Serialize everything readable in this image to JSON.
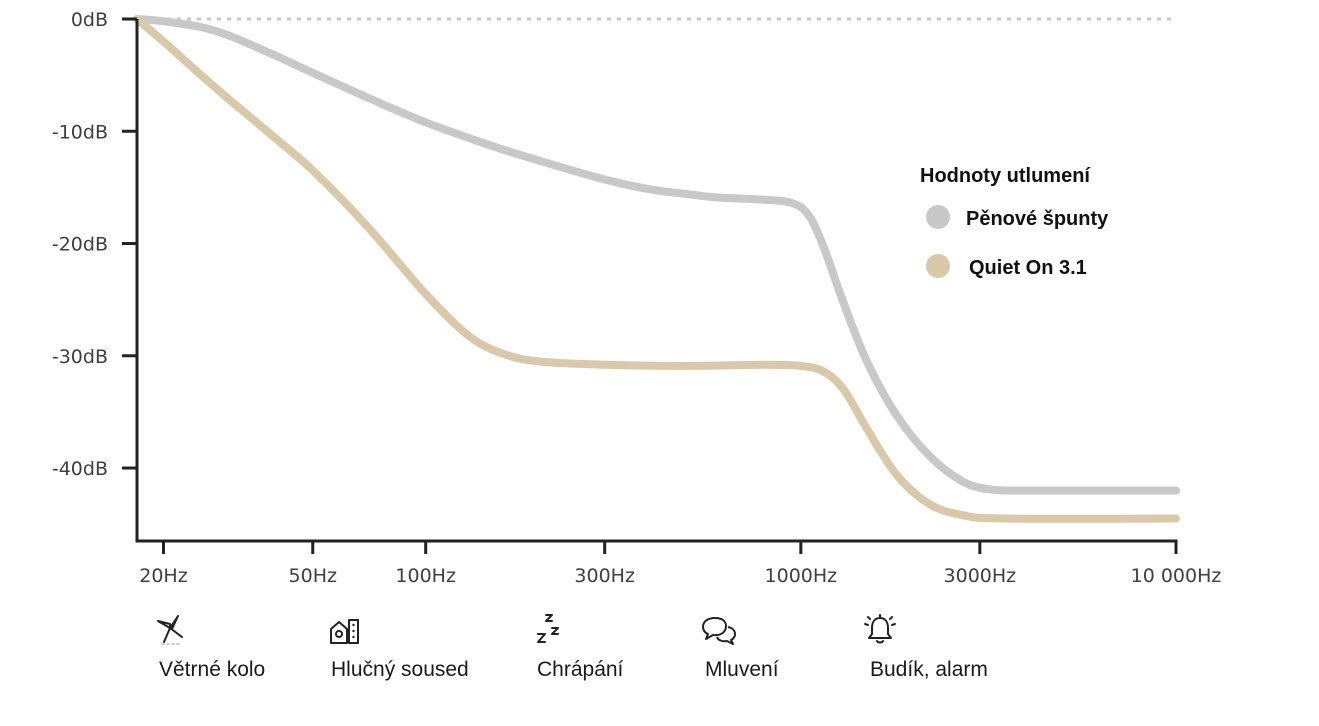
{
  "chart_data": {
    "type": "line",
    "x_scale": "log",
    "x_ticks": [
      {
        "value": 20,
        "label": "20Hz"
      },
      {
        "value": 50,
        "label": "50Hz"
      },
      {
        "value": 100,
        "label": "100Hz"
      },
      {
        "value": 300,
        "label": "300Hz"
      },
      {
        "value": 1000,
        "label": "1000Hz"
      },
      {
        "value": 3000,
        "label": "3000Hz"
      },
      {
        "value": 10000,
        "label": "10 000Hz"
      }
    ],
    "y_ticks": [
      {
        "value": 0,
        "label": "0dB"
      },
      {
        "value": -10,
        "label": "-10dB"
      },
      {
        "value": -20,
        "label": "-20dB"
      },
      {
        "value": -30,
        "label": "-30dB"
      },
      {
        "value": -40,
        "label": "-40dB"
      }
    ],
    "xlim": [
      17,
      10000
    ],
    "ylim": [
      -46.5,
      0
    ],
    "reference_line": {
      "y": 0,
      "style": "dotted",
      "color": "#c8c8c8"
    },
    "legend": {
      "title": "Hodnoty utlumení",
      "placement": "right"
    },
    "series": [
      {
        "name": "Pěnové špunty",
        "color": "#c8c8c8",
        "points": [
          [
            17,
            0
          ],
          [
            20,
            -0.2
          ],
          [
            25,
            -0.7
          ],
          [
            30,
            -1.5
          ],
          [
            40,
            -3.3
          ],
          [
            50,
            -4.8
          ],
          [
            70,
            -7.0
          ],
          [
            100,
            -9.2
          ],
          [
            150,
            -11.3
          ],
          [
            200,
            -12.6
          ],
          [
            300,
            -14.3
          ],
          [
            400,
            -15.2
          ],
          [
            500,
            -15.6
          ],
          [
            600,
            -15.9
          ],
          [
            800,
            -16.1
          ],
          [
            950,
            -16.4
          ],
          [
            1050,
            -17.5
          ],
          [
            1150,
            -20.3
          ],
          [
            1300,
            -25.3
          ],
          [
            1500,
            -30.5
          ],
          [
            1800,
            -35.3
          ],
          [
            2200,
            -38.9
          ],
          [
            2700,
            -41.2
          ],
          [
            3200,
            -41.9
          ],
          [
            4000,
            -42.0
          ],
          [
            6000,
            -42.0
          ],
          [
            10000,
            -42.0
          ]
        ]
      },
      {
        "name": "Quiet On 3.1",
        "color": "#d9c8a9",
        "points": [
          [
            17,
            0
          ],
          [
            20,
            -2.0
          ],
          [
            25,
            -4.9
          ],
          [
            30,
            -7.2
          ],
          [
            40,
            -10.7
          ],
          [
            50,
            -13.5
          ],
          [
            70,
            -18.5
          ],
          [
            100,
            -24.5
          ],
          [
            130,
            -28.2
          ],
          [
            160,
            -29.8
          ],
          [
            200,
            -30.5
          ],
          [
            300,
            -30.8
          ],
          [
            500,
            -30.9
          ],
          [
            800,
            -30.8
          ],
          [
            1000,
            -30.9
          ],
          [
            1150,
            -31.4
          ],
          [
            1300,
            -33.0
          ],
          [
            1500,
            -36.5
          ],
          [
            1800,
            -40.6
          ],
          [
            2200,
            -43.2
          ],
          [
            2700,
            -44.2
          ],
          [
            3500,
            -44.5
          ],
          [
            10000,
            -44.5
          ]
        ]
      }
    ]
  },
  "noise_sources": [
    {
      "icon": "wind-turbine-icon",
      "label": "Větrné kolo"
    },
    {
      "icon": "noisy-neighbor-icon",
      "label": "Hlučný soused"
    },
    {
      "icon": "snoring-icon",
      "label": "Chrápání"
    },
    {
      "icon": "speech-bubbles-icon",
      "label": "Mluvení"
    },
    {
      "icon": "alarm-bell-icon",
      "label": "Budík, alarm"
    }
  ]
}
